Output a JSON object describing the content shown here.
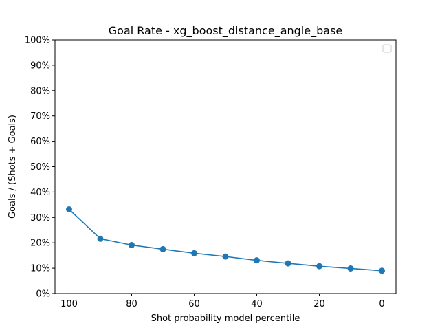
{
  "chart_data": {
    "type": "line",
    "title": "Goal Rate - xg_boost_distance_angle_base",
    "xlabel": "Shot probability model percentile",
    "ylabel": "Goals / (Shots + Goals)",
    "x_inverted": true,
    "xlim": [
      104.5,
      -4.5
    ],
    "ylim": [
      0,
      1
    ],
    "x_ticks": [
      100,
      80,
      60,
      40,
      20,
      0
    ],
    "x_tick_labels": [
      "100",
      "80",
      "60",
      "40",
      "20",
      "0"
    ],
    "y_ticks": [
      0,
      0.1,
      0.2,
      0.3,
      0.4,
      0.5,
      0.6,
      0.7,
      0.8,
      0.9,
      1.0
    ],
    "y_tick_labels": [
      "0%",
      "10%",
      "20%",
      "30%",
      "40%",
      "50%",
      "60%",
      "70%",
      "80%",
      "90%",
      "100%"
    ],
    "grid": false,
    "legend": {
      "placement": "top-right",
      "entries": []
    },
    "series": [
      {
        "color": "#1f77b4",
        "marker": "circle",
        "x": [
          100,
          90,
          80,
          70,
          60,
          50,
          40,
          30,
          20,
          10,
          0
        ],
        "y": [
          0.332,
          0.216,
          0.191,
          0.175,
          0.159,
          0.146,
          0.131,
          0.119,
          0.108,
          0.099,
          0.09
        ]
      }
    ]
  }
}
